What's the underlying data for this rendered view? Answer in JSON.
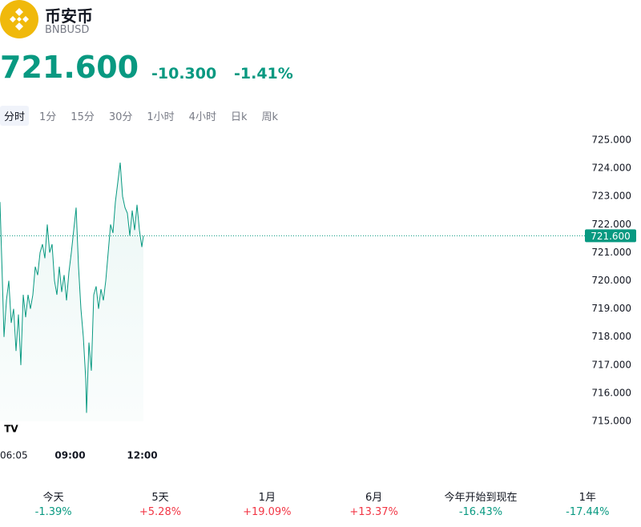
{
  "header": {
    "name": "币安币",
    "symbol": "BNBUSD",
    "price": "721.600",
    "change": "-10.300",
    "change_percent": "-1.41%"
  },
  "tabs": [
    "分时",
    "1分",
    "15分",
    "30分",
    "1小时",
    "4小时",
    "日k",
    "周k"
  ],
  "chart_data": {
    "type": "line",
    "color": "#089981",
    "x": [
      0,
      6,
      10,
      16,
      22,
      28,
      34,
      40,
      46,
      52,
      58,
      64,
      70,
      76,
      82,
      88,
      94,
      100,
      106,
      112,
      118,
      124,
      130,
      136,
      142,
      148,
      154,
      160,
      166,
      172,
      178,
      184,
      190,
      196,
      202,
      208,
      214,
      216,
      222,
      228,
      234,
      240,
      246,
      252,
      258,
      264,
      270,
      276,
      282,
      288,
      294,
      300,
      306,
      312,
      318,
      324,
      330,
      336,
      342,
      348,
      354,
      358
    ],
    "series": [
      {
        "name": "BNBUSD",
        "color": "#089981",
        "values": [
          722.8,
          720.0,
          718.0,
          719.3,
          720.0,
          718.5,
          719.0,
          717.5,
          718.8,
          717.0,
          719.5,
          718.7,
          719.5,
          719.0,
          719.5,
          720.5,
          720.2,
          721.0,
          721.3,
          720.8,
          722.0,
          721.0,
          721.3,
          720.0,
          719.5,
          720.5,
          719.6,
          720.2,
          719.3,
          720.3,
          721.0,
          721.8,
          722.6,
          720.5,
          719.0,
          718.0,
          716.5,
          715.3,
          717.8,
          716.8,
          719.5,
          719.8,
          719.0,
          719.7,
          719.3,
          720.0,
          721.0,
          722.0,
          721.7,
          722.8,
          723.5,
          724.2,
          723.0,
          722.6,
          722.4,
          721.6,
          722.5,
          721.8,
          722.7,
          721.8,
          721.2,
          721.6
        ]
      }
    ],
    "xlim": [
      0,
      1460
    ],
    "xticks": [
      {
        "value": 0,
        "label": "06:05"
      },
      {
        "value": 175,
        "label": "09:00"
      },
      {
        "value": 355,
        "label": "12:00"
      }
    ],
    "ylim": [
      715,
      725
    ],
    "yticks": [
      {
        "value": 715,
        "label": "715.000"
      },
      {
        "value": 716,
        "label": "716.000"
      },
      {
        "value": 717,
        "label": "717.000"
      },
      {
        "value": 718,
        "label": "718.000"
      },
      {
        "value": 719,
        "label": "719.000"
      },
      {
        "value": 720,
        "label": "720.000"
      },
      {
        "value": 721,
        "label": "721.000"
      },
      {
        "value": 722,
        "label": "722.000"
      },
      {
        "value": 723,
        "label": "723.000"
      },
      {
        "value": 724,
        "label": "724.000"
      },
      {
        "value": 725,
        "label": "725.000"
      }
    ],
    "price_line": {
      "value": 721.6,
      "label": "721.600"
    }
  },
  "performance": [
    {
      "label": "今天",
      "value": "-1.39%"
    },
    {
      "label": "5天",
      "value": "+5.28%"
    },
    {
      "label": "1月",
      "value": "+19.09%"
    },
    {
      "label": "6月",
      "value": "+13.37%"
    },
    {
      "label": "今年开始到现在",
      "value": "-16.43%"
    },
    {
      "label": "1年",
      "value": "-17.44%"
    }
  ]
}
